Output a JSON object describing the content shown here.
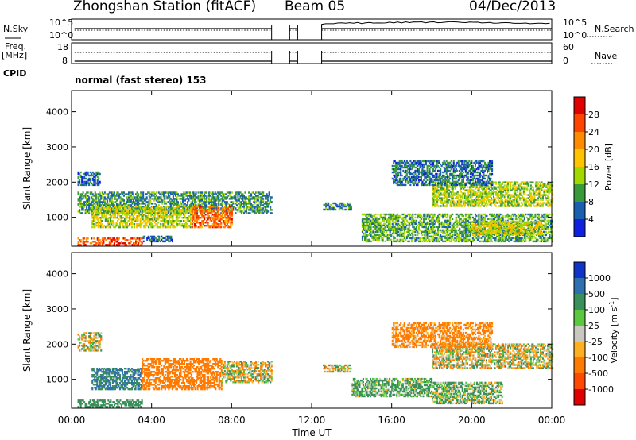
{
  "header": {
    "station_title": "Zhongshan Station (fitACF)",
    "beam": "Beam 05",
    "date": "04/Dec/2013"
  },
  "top_panels": {
    "nsky_label": "N.Sky",
    "nsearch_label": "N.Search",
    "freq_label": "Freq.",
    "freq_unit": "[MHz]",
    "nave_label": "Nave",
    "cpid_label": "CPID",
    "cpid_value": "normal (fast stereo) 153",
    "nsky_ticks": [
      "10^5",
      "10^0"
    ],
    "nsearch_ticks": [
      "10^5",
      "10^0"
    ],
    "freq_ticks": [
      "18",
      "8"
    ],
    "nave_ticks": [
      "60",
      "0"
    ]
  },
  "colorbars": {
    "power": {
      "label": "Power [dB]",
      "ticks": [
        "28",
        "24",
        "20",
        "16",
        "12",
        "8",
        "4"
      ],
      "colors": [
        "#e00000",
        "#ff4400",
        "#ff8c00",
        "#ffc400",
        "#a0d800",
        "#3a9a3a",
        "#1a5fb0",
        "#1020e0"
      ]
    },
    "velocity": {
      "label": "Velocity [m s",
      "label_sup": "-1",
      "label_end": "]",
      "ticks": [
        "1000",
        "500",
        "100",
        "25",
        "-25",
        "-100",
        "-500",
        "-1000"
      ],
      "colors": [
        "#1034c8",
        "#2e6fb0",
        "#3b8f5a",
        "#5cc840",
        "#c8c8c0",
        "#ffb020",
        "#ff7a00",
        "#ff4800",
        "#e00000"
      ]
    }
  },
  "axes": {
    "ylabel": "Slant Range [km]",
    "xlabel": "Time UT",
    "x_ticks": [
      "00:00",
      "04:00",
      "08:00",
      "12:00",
      "16:00",
      "20:00",
      "00:00"
    ],
    "y_ticks": [
      "4000",
      "3000",
      "2000",
      "1000"
    ]
  },
  "chart_data": [
    {
      "type": "heatmap",
      "name": "Power",
      "x_range_hours": [
        0,
        24
      ],
      "y_range_km": [
        180,
        4600
      ],
      "data_gap_hours": [
        [
          10.0,
          10.9
        ],
        [
          11.3,
          12.5
        ]
      ],
      "echo_regions": [
        {
          "t0": 0.3,
          "t1": 1.4,
          "r0": 1900,
          "r1": 2300,
          "power": 6
        },
        {
          "t0": 0.3,
          "t1": 10.0,
          "r0": 1100,
          "r1": 1700,
          "power": 9
        },
        {
          "t0": 1.0,
          "t1": 6.0,
          "r0": 700,
          "r1": 1300,
          "power": 15
        },
        {
          "t0": 6.0,
          "t1": 8.0,
          "r0": 700,
          "r1": 1300,
          "power": 24
        },
        {
          "t0": 0.3,
          "t1": 3.5,
          "r0": 200,
          "r1": 400,
          "power": 26
        },
        {
          "t0": 3.5,
          "t1": 5.0,
          "r0": 300,
          "r1": 450,
          "power": 6
        },
        {
          "t0": 12.5,
          "t1": 14.0,
          "r0": 1200,
          "r1": 1400,
          "power": 8
        },
        {
          "t0": 14.5,
          "t1": 24.0,
          "r0": 300,
          "r1": 1100,
          "power": 11
        },
        {
          "t0": 18.0,
          "t1": 24.0,
          "r0": 1300,
          "r1": 2000,
          "power": 14
        },
        {
          "t0": 16.0,
          "t1": 21.0,
          "r0": 1900,
          "r1": 2600,
          "power": 7
        },
        {
          "t0": 20.0,
          "t1": 23.5,
          "r0": 500,
          "r1": 900,
          "power": 16
        }
      ]
    },
    {
      "type": "heatmap",
      "name": "Velocity",
      "x_range_hours": [
        0,
        24
      ],
      "y_range_km": [
        180,
        4600
      ],
      "data_gap_hours": [
        [
          10.0,
          10.9
        ],
        [
          11.3,
          12.5
        ]
      ],
      "echo_regions": [
        {
          "t0": 0.3,
          "t1": 1.5,
          "r0": 1800,
          "r1": 2300,
          "velocity": 0
        },
        {
          "t0": 1.0,
          "t1": 3.5,
          "r0": 700,
          "r1": 1300,
          "velocity": 500
        },
        {
          "t0": 3.5,
          "t1": 7.5,
          "r0": 700,
          "r1": 1600,
          "velocity": -300
        },
        {
          "t0": 7.5,
          "t1": 10.0,
          "r0": 900,
          "r1": 1500,
          "velocity": 0
        },
        {
          "t0": 0.3,
          "t1": 3.5,
          "r0": 200,
          "r1": 400,
          "velocity": 300
        },
        {
          "t0": 12.5,
          "t1": 14.0,
          "r0": 1200,
          "r1": 1400,
          "velocity": 0
        },
        {
          "t0": 14.0,
          "t1": 18.0,
          "r0": 500,
          "r1": 1000,
          "velocity": 150
        },
        {
          "t0": 18.0,
          "t1": 24.0,
          "r0": 1300,
          "r1": 2000,
          "velocity": 0
        },
        {
          "t0": 16.0,
          "t1": 21.0,
          "r0": 1900,
          "r1": 2600,
          "velocity": -200
        },
        {
          "t0": 18.0,
          "t1": 21.5,
          "r0": 300,
          "r1": 900,
          "velocity": 100
        }
      ]
    }
  ]
}
